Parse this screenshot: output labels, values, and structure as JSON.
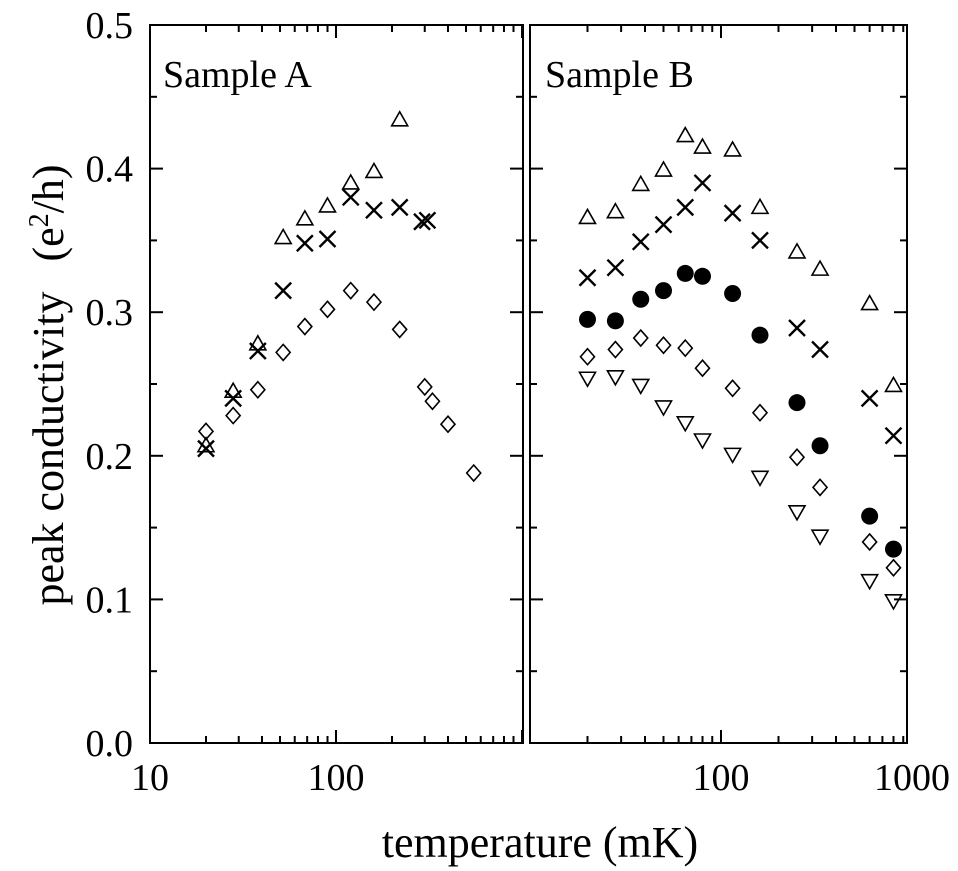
{
  "chart_data": {
    "type": "scatter",
    "ylabel": "peak conductivity",
    "ylabel_unit": "(e2/h)",
    "ylabel_unit_parts": {
      "open": "(e",
      "sup": "2",
      "close": "/h)"
    },
    "xlabel": "temperature (mK)",
    "x_scale": "log",
    "ylim": [
      0.0,
      0.5
    ],
    "y_ticks": [
      "0.0",
      "0.1",
      "0.2",
      "0.3",
      "0.4",
      "0.5"
    ],
    "panels": [
      {
        "label": "Sample A",
        "xlim": [
          10,
          900
        ],
        "x_tick_labels": [
          "10",
          "100"
        ],
        "series": [
          {
            "marker": "triangle-up",
            "points": [
              [
                20,
                0.207
              ],
              [
                28,
                0.245
              ],
              [
                38,
                0.278
              ],
              [
                52,
                0.352
              ],
              [
                68,
                0.365
              ],
              [
                90,
                0.374
              ],
              [
                120,
                0.39
              ],
              [
                160,
                0.398
              ],
              [
                220,
                0.434
              ]
            ]
          },
          {
            "marker": "cross",
            "points": [
              [
                20,
                0.205
              ],
              [
                28,
                0.24
              ],
              [
                38,
                0.273
              ],
              [
                52,
                0.315
              ],
              [
                68,
                0.348
              ],
              [
                90,
                0.351
              ],
              [
                120,
                0.38
              ],
              [
                160,
                0.371
              ],
              [
                220,
                0.373
              ],
              [
                290,
                0.363
              ],
              [
                310,
                0.364
              ]
            ]
          },
          {
            "marker": "diamond",
            "points": [
              [
                20,
                0.217
              ],
              [
                28,
                0.228
              ],
              [
                38,
                0.246
              ],
              [
                52,
                0.272
              ],
              [
                68,
                0.29
              ],
              [
                90,
                0.302
              ],
              [
                120,
                0.315
              ],
              [
                160,
                0.307
              ],
              [
                220,
                0.288
              ],
              [
                300,
                0.248
              ],
              [
                330,
                0.238
              ],
              [
                400,
                0.222
              ],
              [
                550,
                0.188
              ]
            ]
          }
        ]
      },
      {
        "label": "Sample B",
        "xlim": [
          10,
          1000
        ],
        "x_tick_labels": [
          "100",
          "1000"
        ],
        "series": [
          {
            "marker": "triangle-up",
            "points": [
              [
                20,
                0.366
              ],
              [
                28,
                0.37
              ],
              [
                38,
                0.389
              ],
              [
                50,
                0.399
              ],
              [
                65,
                0.423
              ],
              [
                80,
                0.415
              ],
              [
                115,
                0.413
              ],
              [
                160,
                0.373
              ],
              [
                250,
                0.342
              ],
              [
                330,
                0.33
              ],
              [
                600,
                0.306
              ],
              [
                800,
                0.249
              ]
            ]
          },
          {
            "marker": "cross",
            "points": [
              [
                20,
                0.324
              ],
              [
                28,
                0.331
              ],
              [
                38,
                0.349
              ],
              [
                50,
                0.361
              ],
              [
                65,
                0.373
              ],
              [
                80,
                0.39
              ],
              [
                115,
                0.369
              ],
              [
                160,
                0.35
              ],
              [
                250,
                0.289
              ],
              [
                330,
                0.274
              ],
              [
                600,
                0.24
              ],
              [
                800,
                0.214
              ]
            ]
          },
          {
            "marker": "filled-circle",
            "points": [
              [
                20,
                0.295
              ],
              [
                28,
                0.294
              ],
              [
                38,
                0.309
              ],
              [
                50,
                0.315
              ],
              [
                65,
                0.327
              ],
              [
                80,
                0.325
              ],
              [
                115,
                0.313
              ],
              [
                160,
                0.284
              ],
              [
                250,
                0.237
              ],
              [
                330,
                0.207
              ],
              [
                600,
                0.158
              ],
              [
                800,
                0.135
              ]
            ]
          },
          {
            "marker": "diamond",
            "points": [
              [
                20,
                0.269
              ],
              [
                28,
                0.274
              ],
              [
                38,
                0.282
              ],
              [
                50,
                0.277
              ],
              [
                65,
                0.275
              ],
              [
                80,
                0.261
              ],
              [
                115,
                0.247
              ],
              [
                160,
                0.23
              ],
              [
                250,
                0.199
              ],
              [
                330,
                0.178
              ],
              [
                600,
                0.14
              ],
              [
                800,
                0.122
              ]
            ]
          },
          {
            "marker": "triangle-down",
            "points": [
              [
                20,
                0.254
              ],
              [
                28,
                0.255
              ],
              [
                38,
                0.249
              ],
              [
                50,
                0.234
              ],
              [
                65,
                0.223
              ],
              [
                80,
                0.211
              ],
              [
                115,
                0.201
              ],
              [
                160,
                0.185
              ],
              [
                250,
                0.161
              ],
              [
                330,
                0.144
              ],
              [
                600,
                0.113
              ],
              [
                800,
                0.099
              ]
            ]
          }
        ]
      }
    ]
  }
}
